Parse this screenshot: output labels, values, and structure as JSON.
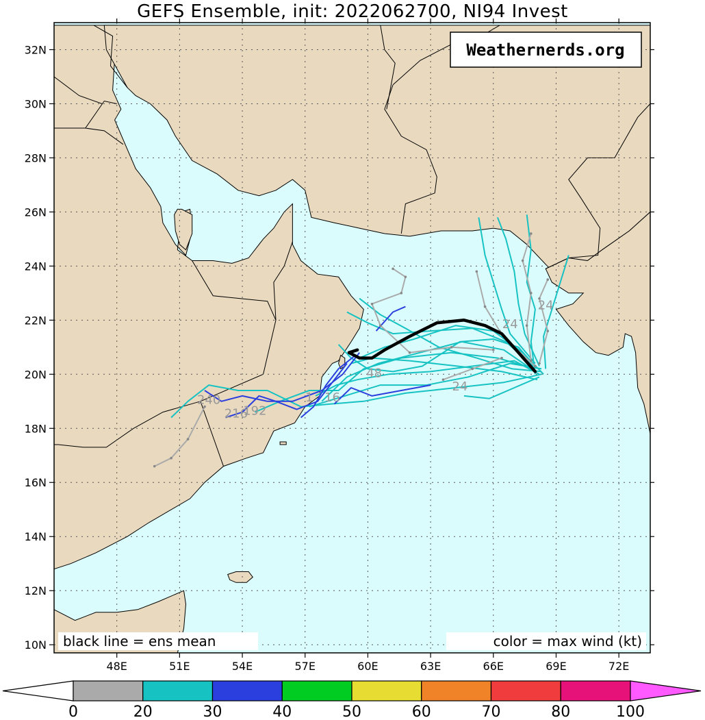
{
  "title": "GEFS Ensemble, init: 2022062700, NI94 Invest",
  "watermark": "Weathernerds.org",
  "legend_left": "black line = ens mean",
  "legend_right": "color = max wind (kt)",
  "map": {
    "lon_range": [
      45,
      73.5
    ],
    "lat_range": [
      9.7,
      33.0
    ],
    "lon_ticks": [
      48,
      51,
      54,
      57,
      60,
      63,
      66,
      69,
      72
    ],
    "lat_ticks": [
      10,
      12,
      14,
      16,
      18,
      20,
      22,
      24,
      26,
      28,
      30,
      32
    ],
    "lon_tick_labels": [
      "48E",
      "51E",
      "54E",
      "57E",
      "60E",
      "63E",
      "66E",
      "69E",
      "72E"
    ],
    "lat_tick_labels": [
      "10N",
      "12N",
      "14N",
      "16N",
      "18N",
      "20N",
      "22N",
      "24N",
      "26N",
      "28N",
      "30N",
      "32N"
    ],
    "colors": {
      "land": "#e8d9bf",
      "ocean": "#dbfcfc",
      "border": "#000000"
    }
  },
  "tracks": {
    "mean_color": "#000000",
    "mean_path": [
      [
        68.0,
        20.1
      ],
      [
        67.2,
        20.8
      ],
      [
        66.4,
        21.5
      ],
      [
        65.6,
        21.8
      ],
      [
        64.6,
        22.0
      ],
      [
        63.3,
        21.9
      ],
      [
        62.0,
        21.4
      ],
      [
        60.8,
        20.9
      ],
      [
        60.2,
        20.6
      ],
      [
        59.6,
        20.6
      ],
      [
        59.1,
        20.8
      ],
      [
        59.5,
        20.9
      ]
    ],
    "members": [
      {
        "color": "#16c2c2",
        "path": [
          [
            68.2,
            20.0
          ],
          [
            67.0,
            20.5
          ],
          [
            65.0,
            20.3
          ],
          [
            63.0,
            20.1
          ],
          [
            61.0,
            20.0
          ],
          [
            59.5,
            19.8
          ],
          [
            58.5,
            19.6
          ],
          [
            57.5,
            19.2
          ]
        ]
      },
      {
        "color": "#16c2c2",
        "path": [
          [
            68.0,
            20.1
          ],
          [
            66.5,
            20.9
          ],
          [
            64.5,
            21.2
          ],
          [
            62.5,
            20.8
          ],
          [
            60.5,
            20.4
          ],
          [
            59.0,
            19.9
          ],
          [
            57.8,
            19.0
          ]
        ]
      },
      {
        "color": "#16c2c2",
        "path": [
          [
            68.3,
            20.2
          ],
          [
            66.8,
            20.4
          ],
          [
            64.8,
            19.9
          ],
          [
            62.8,
            19.6
          ],
          [
            60.6,
            19.6
          ],
          [
            58.9,
            19.2
          ],
          [
            57.2,
            18.8
          ]
        ]
      },
      {
        "color": "#16c2c2",
        "path": [
          [
            68.1,
            19.8
          ],
          [
            66.4,
            20.1
          ],
          [
            64.3,
            20.3
          ],
          [
            62.0,
            20.5
          ],
          [
            60.2,
            20.6
          ],
          [
            59.2,
            20.4
          ]
        ]
      },
      {
        "color": "#16c2c2",
        "path": [
          [
            68.4,
            20.0
          ],
          [
            67.4,
            20.8
          ],
          [
            66.0,
            21.6
          ],
          [
            64.2,
            21.8
          ],
          [
            62.2,
            21.3
          ],
          [
            60.8,
            21.0
          ],
          [
            59.6,
            20.6
          ]
        ]
      },
      {
        "color": "#16c2c2",
        "path": [
          [
            67.9,
            20.3
          ],
          [
            66.6,
            21.2
          ],
          [
            65.0,
            21.7
          ],
          [
            63.0,
            21.6
          ],
          [
            61.2,
            21.5
          ],
          [
            60.0,
            21.9
          ],
          [
            59.0,
            22.3
          ]
        ]
      },
      {
        "color": "#16c2c2",
        "path": [
          [
            68.2,
            20.3
          ],
          [
            67.5,
            21.5
          ],
          [
            67.2,
            22.6
          ],
          [
            67.0,
            23.8
          ],
          [
            66.6,
            25.0
          ],
          [
            66.2,
            25.8
          ]
        ]
      },
      {
        "color": "#16c2c2",
        "path": [
          [
            68.0,
            20.0
          ],
          [
            67.8,
            21.2
          ],
          [
            68.0,
            22.4
          ],
          [
            67.6,
            23.4
          ],
          [
            67.8,
            24.6
          ],
          [
            67.6,
            25.9
          ]
        ]
      },
      {
        "color": "#16c2c2",
        "path": [
          [
            68.5,
            20.2
          ],
          [
            68.4,
            21.4
          ],
          [
            68.8,
            22.4
          ],
          [
            69.2,
            23.4
          ],
          [
            69.6,
            24.4
          ]
        ]
      },
      {
        "color": "#16c2c2",
        "path": [
          [
            68.3,
            20.0
          ],
          [
            66.5,
            19.7
          ],
          [
            64.2,
            19.5
          ],
          [
            61.8,
            19.3
          ],
          [
            59.8,
            19.0
          ],
          [
            58.2,
            18.9
          ],
          [
            56.8,
            18.8
          ],
          [
            55.2,
            19.4
          ],
          [
            53.8,
            19.4
          ],
          [
            52.4,
            19.6
          ],
          [
            51.4,
            19.0
          ],
          [
            50.6,
            18.4
          ]
        ]
      },
      {
        "color": "#16c2c2",
        "path": [
          [
            68.0,
            20.2
          ],
          [
            66.2,
            20.6
          ],
          [
            64.0,
            20.8
          ],
          [
            61.6,
            20.6
          ],
          [
            59.8,
            20.2
          ],
          [
            58.6,
            19.4
          ],
          [
            57.2,
            19.4
          ],
          [
            55.8,
            19.0
          ],
          [
            54.6,
            18.6
          ]
        ]
      },
      {
        "color": "#16c2c2",
        "path": [
          [
            68.2,
            19.9
          ],
          [
            67.0,
            19.5
          ],
          [
            65.8,
            19.1
          ],
          [
            64.6,
            19.2
          ]
        ]
      },
      {
        "color": "#16c2c2",
        "path": [
          [
            68.0,
            20.4
          ],
          [
            66.8,
            21.5
          ],
          [
            66.4,
            22.4
          ],
          [
            66.0,
            23.4
          ],
          [
            65.6,
            24.4
          ],
          [
            65.3,
            25.8
          ]
        ]
      },
      {
        "color": "#16c2c2",
        "path": [
          [
            68.1,
            20.2
          ],
          [
            67.2,
            21.0
          ],
          [
            66.0,
            21.3
          ],
          [
            64.4,
            21.2
          ],
          [
            62.6,
            20.3
          ],
          [
            61.2,
            20.1
          ],
          [
            60.0,
            20.2
          ],
          [
            59.2,
            20.6
          ],
          [
            58.6,
            21.1
          ]
        ]
      },
      {
        "color": "#16c2c2",
        "path": [
          [
            68.3,
            20.1
          ],
          [
            66.9,
            20.2
          ],
          [
            65.2,
            20.6
          ],
          [
            63.4,
            21.0
          ],
          [
            61.8,
            21.7
          ],
          [
            60.6,
            22.2
          ],
          [
            59.6,
            22.8
          ]
        ]
      },
      {
        "color": "#2b3fde",
        "path": [
          [
            59.0,
            20.4
          ],
          [
            58.4,
            19.8
          ],
          [
            57.6,
            19.0
          ],
          [
            56.6,
            18.7
          ],
          [
            55.6,
            19.0
          ],
          [
            54.8,
            19.2
          ],
          [
            54.0,
            18.6
          ],
          [
            53.2,
            18.4
          ]
        ]
      },
      {
        "color": "#2b3fde",
        "path": [
          [
            59.6,
            20.8
          ],
          [
            58.8,
            20.0
          ],
          [
            57.8,
            19.4
          ],
          [
            56.4,
            19.0
          ],
          [
            55.2,
            19.0
          ],
          [
            54.0,
            19.2
          ],
          [
            53.0,
            19.0
          ],
          [
            52.2,
            19.4
          ]
        ]
      },
      {
        "color": "#2b3fde",
        "path": [
          [
            60.4,
            21.6
          ],
          [
            61.2,
            22.3
          ],
          [
            61.8,
            22.5
          ]
        ]
      },
      {
        "color": "#2b3fde",
        "path": [
          [
            63.0,
            19.6
          ],
          [
            61.6,
            19.4
          ],
          [
            60.2,
            19.2
          ],
          [
            59.2,
            19.5
          ],
          [
            58.4,
            18.9
          ]
        ]
      },
      {
        "color": "#2b3fde",
        "path": [
          [
            59.4,
            20.7
          ],
          [
            58.6,
            20.2
          ],
          [
            58.0,
            19.6
          ],
          [
            57.4,
            18.8
          ],
          [
            56.8,
            18.4
          ]
        ]
      },
      {
        "color": "#aaaaaa",
        "path": [
          [
            68.0,
            20.3
          ],
          [
            67.0,
            21.0
          ],
          [
            66.3,
            21.6
          ],
          [
            65.6,
            22.5
          ],
          [
            65.2,
            23.8
          ]
        ]
      },
      {
        "color": "#aaaaaa",
        "path": [
          [
            67.8,
            20.5
          ],
          [
            67.6,
            21.8
          ],
          [
            67.8,
            23.0
          ],
          [
            67.4,
            24.2
          ],
          [
            67.8,
            25.2
          ]
        ]
      },
      {
        "color": "#aaaaaa",
        "path": [
          [
            68.2,
            20.4
          ],
          [
            68.6,
            21.6
          ],
          [
            68.2,
            22.8
          ],
          [
            68.6,
            23.5
          ]
        ]
      },
      {
        "color": "#aaaaaa",
        "path": [
          [
            66.0,
            20.9
          ],
          [
            64.0,
            21.0
          ],
          [
            62.0,
            20.8
          ],
          [
            60.6,
            21.8
          ],
          [
            60.2,
            22.6
          ],
          [
            61.6,
            23.0
          ],
          [
            61.8,
            23.6
          ],
          [
            61.2,
            23.9
          ]
        ]
      },
      {
        "color": "#aaaaaa",
        "path": [
          [
            52.2,
            18.8
          ],
          [
            51.4,
            17.6
          ],
          [
            50.6,
            16.9
          ],
          [
            49.8,
            16.6
          ]
        ]
      },
      {
        "color": "#aaaaaa",
        "path": [
          [
            66.4,
            20.6
          ],
          [
            65.0,
            20.2
          ],
          [
            63.6,
            19.8
          ]
        ]
      }
    ],
    "hour_labels": [
      {
        "text": "24",
        "lon": 66.8,
        "lat": 21.7
      },
      {
        "text": "24",
        "lon": 68.5,
        "lat": 22.4
      },
      {
        "text": "24",
        "lon": 64.4,
        "lat": 19.4
      },
      {
        "text": "48",
        "lon": 60.3,
        "lat": 19.9
      },
      {
        "text": "16",
        "lon": 58.3,
        "lat": 19.0
      },
      {
        "text": "240",
        "lon": 52.4,
        "lat": 18.9
      },
      {
        "text": "216",
        "lon": 53.7,
        "lat": 18.4
      },
      {
        "text": "192",
        "lon": 54.6,
        "lat": 18.5
      },
      {
        "text": "1",
        "lon": 57.2,
        "lat": 19.0
      }
    ]
  },
  "colorbar": {
    "labels": [
      "0",
      "20",
      "30",
      "40",
      "50",
      "60",
      "70",
      "80",
      "100"
    ],
    "colors": [
      "#aaaaaa",
      "#16c2c2",
      "#2b3fde",
      "#00cc22",
      "#e6dc32",
      "#f08228",
      "#f03c3c",
      "#e6127a"
    ],
    "under_color": "#ffffff",
    "over_color": "#ff5aff"
  }
}
